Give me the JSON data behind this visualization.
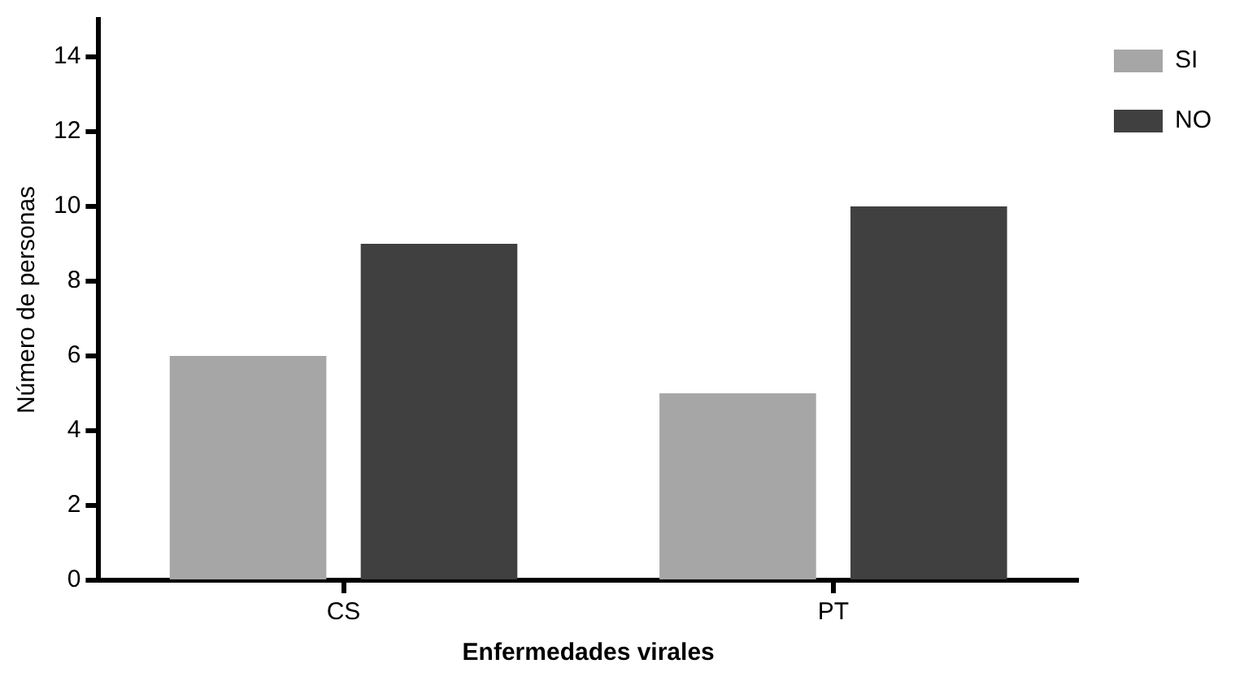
{
  "chart_data": {
    "type": "bar",
    "xlabel": "Enfermedades virales",
    "ylabel": "Número de personas",
    "categories": [
      "CS",
      "PT"
    ],
    "series": [
      {
        "name": "SI",
        "color": "#a6a6a6",
        "values": [
          6,
          5
        ]
      },
      {
        "name": "NO",
        "color": "#404040",
        "values": [
          9,
          10
        ]
      }
    ],
    "ylim": [
      0,
      15
    ],
    "yticks": [
      0,
      2,
      4,
      6,
      8,
      10,
      12,
      14
    ],
    "grid": false,
    "legend": "top right"
  }
}
